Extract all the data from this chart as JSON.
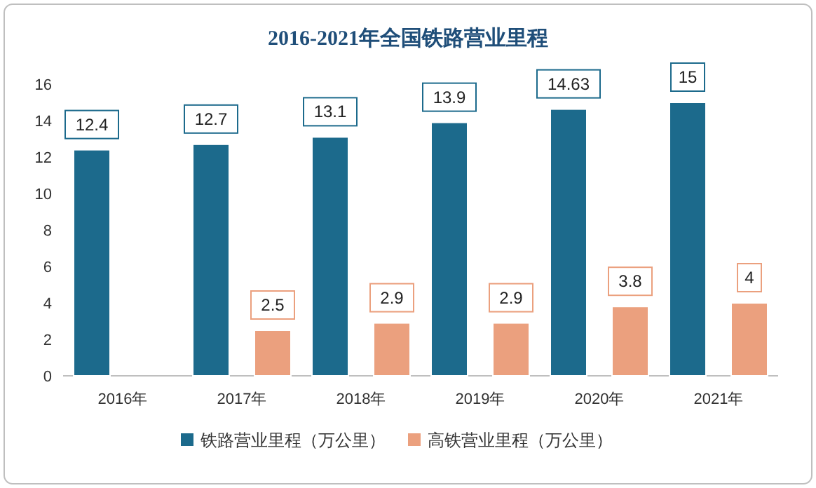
{
  "chart_data": {
    "type": "bar",
    "title": "2016-2021年全国铁路营业里程",
    "categories": [
      "2016年",
      "2017年",
      "2018年",
      "2019年",
      "2020年",
      "2021年"
    ],
    "series": [
      {
        "name": "铁路营业里程（万公里）",
        "color": "#1c6a8c",
        "values": [
          12.4,
          12.7,
          13.1,
          13.9,
          14.63,
          15
        ]
      },
      {
        "name": "高铁营业里程（万公里）",
        "color": "#eba07e",
        "values": [
          null,
          2.5,
          2.9,
          2.9,
          3.8,
          4
        ]
      }
    ],
    "ylim": [
      0,
      16
    ],
    "yticks": [
      0,
      2,
      4,
      6,
      8,
      10,
      12,
      14,
      16
    ],
    "data_labels": true,
    "legend": "bottom"
  }
}
